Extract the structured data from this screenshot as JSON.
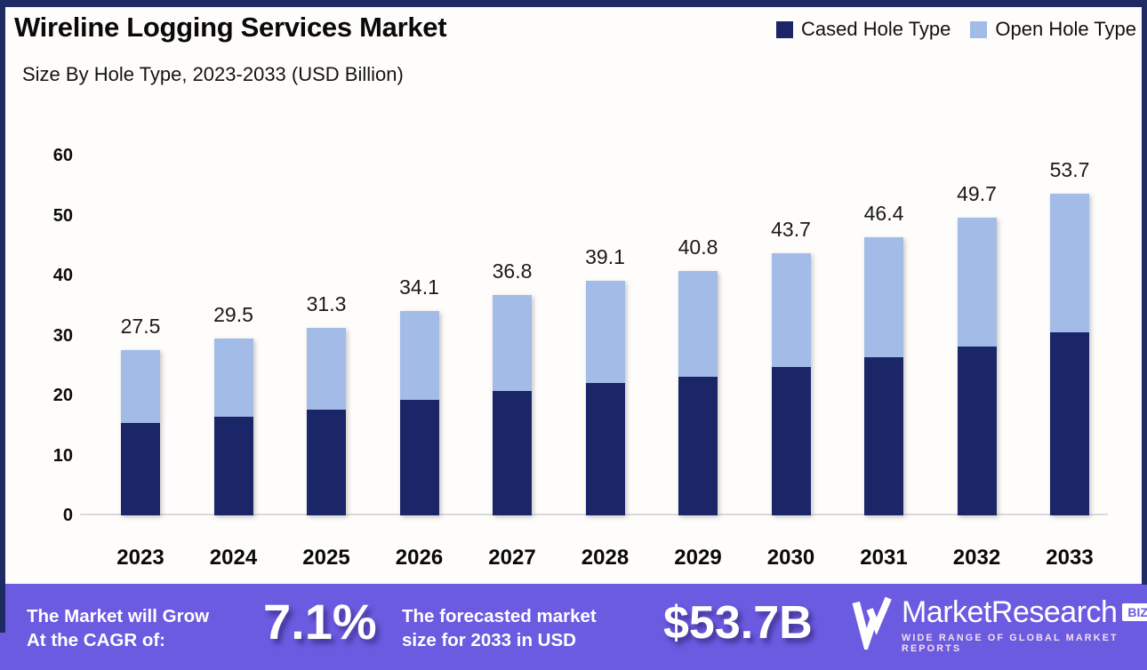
{
  "header": {
    "title": "Wireline Logging Services Market",
    "subtitle": "Size By Hole Type, 2023-2033 (USD Billion)"
  },
  "legend": [
    {
      "label": "Cased Hole Type",
      "color": "#1a2668"
    },
    {
      "label": "Open Hole Type",
      "color": "#a2bbe7"
    }
  ],
  "chart_data": {
    "type": "bar",
    "stacked": true,
    "title": "Wireline Logging Services Market",
    "subtitle": "Size By Hole Type, 2023-2033 (USD Billion)",
    "categories": [
      "2023",
      "2024",
      "2025",
      "2026",
      "2027",
      "2028",
      "2029",
      "2030",
      "2031",
      "2032",
      "2033"
    ],
    "series": [
      {
        "name": "Cased Hole Type",
        "color": "#1a2668",
        "values": [
          15.4,
          16.5,
          17.6,
          19.2,
          20.8,
          22.0,
          23.1,
          24.8,
          26.4,
          28.2,
          30.5
        ]
      },
      {
        "name": "Open Hole Type",
        "color": "#a2bbe7",
        "values": [
          12.1,
          13.0,
          13.7,
          14.9,
          16.0,
          17.1,
          17.7,
          18.9,
          20.0,
          21.5,
          23.2
        ]
      }
    ],
    "totals": [
      27.5,
      29.5,
      31.3,
      34.1,
      36.8,
      39.1,
      40.8,
      43.7,
      46.4,
      49.7,
      53.7
    ],
    "total_labels": [
      "27.5",
      "29.5",
      "31.3",
      "34.1",
      "36.8",
      "39.1",
      "40.8",
      "43.7",
      "46.4",
      "49.7",
      "53.7"
    ],
    "xlabel": "",
    "ylabel": "",
    "ylim": [
      0,
      60
    ],
    "yticks": [
      0,
      10,
      20,
      30,
      40,
      50,
      60
    ],
    "grid": false,
    "legend_position": "top-right"
  },
  "banner": {
    "background": "#6a5be1",
    "cagr_label_line1": "The Market will Grow",
    "cagr_label_line2": "At the CAGR of:",
    "cagr_value": "7.1%",
    "forecast_label_line1": "The forecasted market",
    "forecast_label_line2": "size for 2033 in USD",
    "forecast_value": "$53.7B"
  },
  "logo": {
    "name": "MarketResearch",
    "suffix": "BIZ",
    "tagline": "WIDE RANGE OF GLOBAL MARKET REPORTS"
  },
  "colors": {
    "frame_border": "#1e2a63",
    "cased_hole": "#1a2668",
    "open_hole": "#a2bbe7",
    "banner_purple": "#6a5be1",
    "axis_line": "#d9d9d9",
    "background": "#fffdfb"
  }
}
